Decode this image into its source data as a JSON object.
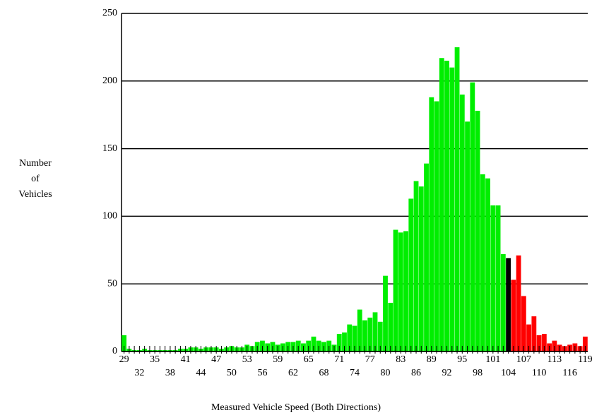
{
  "chart_data": {
    "type": "bar",
    "xlabel": "Measured Vehicle Speed (Both Directions)",
    "ylabel": [
      "Number",
      "of",
      "Vehicles"
    ],
    "categories": [
      "29",
      null,
      null,
      "32",
      null,
      null,
      "35",
      null,
      null,
      "38",
      null,
      null,
      "41",
      null,
      null,
      "44",
      null,
      null,
      "47",
      null,
      null,
      "50",
      null,
      null,
      "53",
      null,
      null,
      "56",
      null,
      null,
      "59",
      null,
      null,
      "62",
      null,
      null,
      "65",
      null,
      null,
      "68",
      null,
      null,
      "71",
      null,
      null,
      "74",
      null,
      null,
      "77",
      null,
      null,
      "80",
      null,
      null,
      "83",
      null,
      null,
      "86",
      null,
      null,
      "89",
      null,
      null,
      "92",
      null,
      null,
      "95",
      null,
      null,
      "98",
      null,
      null,
      "101",
      null,
      null,
      "104",
      null,
      null,
      "107",
      null,
      null,
      "110",
      null,
      null,
      "113",
      null,
      null,
      "116",
      null,
      null,
      "119"
    ],
    "values": [
      12,
      2,
      1,
      1,
      2,
      1,
      1,
      1,
      1,
      1,
      1,
      2,
      2,
      3,
      3,
      2,
      3,
      3,
      3,
      2,
      3,
      4,
      3,
      3,
      5,
      4,
      7,
      8,
      6,
      7,
      5,
      6,
      7,
      7,
      8,
      6,
      8,
      11,
      8,
      7,
      8,
      5,
      13,
      14,
      20,
      19,
      31,
      23,
      25,
      29,
      22,
      56,
      36,
      90,
      88,
      89,
      113,
      126,
      122,
      139,
      188,
      185,
      217,
      215,
      210,
      225,
      190,
      170,
      199,
      178,
      131,
      128,
      108,
      108,
      72,
      69,
      53,
      71,
      41,
      20,
      26,
      12,
      13,
      6,
      8,
      5,
      4,
      5,
      6,
      4,
      11
    ],
    "colors": [
      "#00ee00",
      "#00ee00",
      "#00ee00",
      "#00ee00",
      "#00ee00",
      "#00ee00",
      "#00ee00",
      "#00ee00",
      "#00ee00",
      "#00ee00",
      "#00ee00",
      "#00ee00",
      "#00ee00",
      "#00ee00",
      "#00ee00",
      "#00ee00",
      "#00ee00",
      "#00ee00",
      "#00ee00",
      "#00ee00",
      "#00ee00",
      "#00ee00",
      "#00ee00",
      "#00ee00",
      "#00ee00",
      "#00ee00",
      "#00ee00",
      "#00ee00",
      "#00ee00",
      "#00ee00",
      "#00ee00",
      "#00ee00",
      "#00ee00",
      "#00ee00",
      "#00ee00",
      "#00ee00",
      "#00ee00",
      "#00ee00",
      "#00ee00",
      "#00ee00",
      "#00ee00",
      "#00ee00",
      "#00ee00",
      "#00ee00",
      "#00ee00",
      "#00ee00",
      "#00ee00",
      "#00ee00",
      "#00ee00",
      "#00ee00",
      "#00ee00",
      "#00ee00",
      "#00ee00",
      "#00ee00",
      "#00ee00",
      "#00ee00",
      "#00ee00",
      "#00ee00",
      "#00ee00",
      "#00ee00",
      "#00ee00",
      "#00ee00",
      "#00ee00",
      "#00ee00",
      "#00ee00",
      "#00ee00",
      "#00ee00",
      "#00ee00",
      "#00ee00",
      "#00ee00",
      "#00ee00",
      "#00ee00",
      "#00ee00",
      "#00ee00",
      "#00ee00",
      "#000000",
      "#ff0000",
      "#ff0000",
      "#ff0000",
      "#ff0000",
      "#ff0000",
      "#ff0000",
      "#ff0000",
      "#ff0000",
      "#ff0000",
      "#ff0000",
      "#ff0000",
      "#ff0000",
      "#ff0000",
      "#ff0000",
      "#ff0000"
    ],
    "ylim": [
      0,
      250
    ],
    "yticks": [
      0,
      50,
      100,
      150,
      200,
      250
    ],
    "grid": true
  }
}
